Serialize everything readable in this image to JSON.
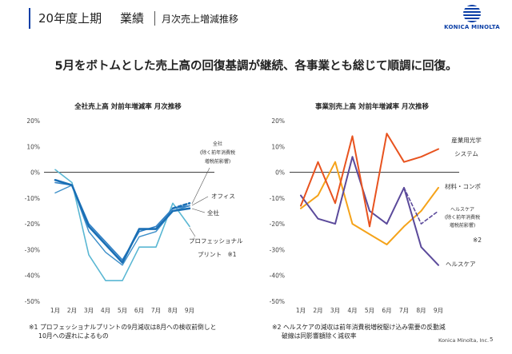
{
  "header": {
    "period": "20年度上期",
    "section": "業績",
    "subtitle": "月次売上増減推移",
    "brand": "KONICA MINOLTA"
  },
  "headline": "5月をボトムとした売上高の回復基調が継続、各事業とも総じて順調に回復。",
  "footer": {
    "company": "Konica Minolta, Inc.",
    "page": "5"
  },
  "chart_data": [
    {
      "type": "line",
      "title": "全社売上高 対前年増減率 月次推移",
      "categories": [
        "1月",
        "2月",
        "3月",
        "4月",
        "5月",
        "6月",
        "7月",
        "8月",
        "9月"
      ],
      "y_ticks": [
        "20%",
        "10%",
        "0%",
        "-10%",
        "-20%",
        "-30%",
        "-40%",
        "-50%"
      ],
      "ylim": [
        -50,
        20
      ],
      "colors": {
        "total": "#1a6fb5",
        "total_adj": "#1a6fb5",
        "office": "#2f7fc4",
        "pro": "#5ab7d3"
      },
      "series": [
        {
          "name": "全社",
          "key": "total",
          "values": [
            -3,
            -5,
            -21,
            -28,
            -35,
            -22,
            -22,
            -15,
            -14
          ]
        },
        {
          "name": "全社(除く前年消費税増税前影響)",
          "key": "total_adj",
          "values": [
            null,
            null,
            null,
            null,
            null,
            null,
            null,
            -14,
            -12
          ]
        },
        {
          "name": "オフィス",
          "key": "office",
          "values": [
            -4,
            -5,
            -20,
            -27,
            -34,
            -23,
            -21,
            -14,
            -13
          ]
        },
        {
          "name": "プロフェッショナルプリント",
          "key": "pro",
          "values": [
            1,
            -4,
            -32,
            -42,
            -42,
            -29,
            -29,
            -12,
            -21
          ]
        },
        {
          "name": "",
          "key": "extra",
          "values": [
            -8,
            -5,
            -23,
            -31,
            -36,
            -25,
            -23,
            -15,
            -13
          ]
        }
      ],
      "labels": {
        "total_adj_1": "全社",
        "total_adj_2": "(除く前年消費税",
        "total_adj_3": "増税前影響)",
        "office": "オフィス",
        "total": "全社",
        "pro_1": "プロフェッショナル",
        "pro_2": "プリント　※1"
      }
    },
    {
      "type": "line",
      "title": "事業別売上高 対前年増減率 月次推移",
      "categories": [
        "1月",
        "2月",
        "3月",
        "4月",
        "5月",
        "6月",
        "7月",
        "8月",
        "9月"
      ],
      "y_ticks": [
        "20%",
        "10%",
        "0%",
        "-10%",
        "-20%",
        "-30%",
        "-40%",
        "-50%"
      ],
      "ylim": [
        -50,
        20
      ],
      "colors": {
        "industrial": "#e8531f",
        "materials": "#f5a31a",
        "healthcare": "#5b4a9b"
      },
      "series": [
        {
          "name": "産業用光学システム",
          "key": "industrial",
          "values": [
            -13,
            4,
            -12,
            14,
            -21,
            15,
            4,
            6,
            9
          ]
        },
        {
          "name": "材料・コンポ",
          "key": "materials",
          "values": [
            -14,
            -9,
            4,
            -20,
            -24,
            -28,
            -21,
            -15,
            -6
          ]
        },
        {
          "name": "ヘルスケア",
          "key": "healthcare",
          "values": [
            -9,
            -18,
            -20,
            6,
            -15,
            -20,
            -6,
            -29,
            -36
          ]
        },
        {
          "name": "ヘルスケア(除く前年消費税増税前影響)",
          "key": "healthcare_adj",
          "values": [
            null,
            null,
            null,
            null,
            null,
            null,
            -6,
            -20,
            -15
          ]
        }
      ],
      "labels": {
        "industrial_1": "産業用光学",
        "industrial_2": "システム",
        "materials": "材料・コンポ",
        "hc_adj_1": "ヘルスケア",
        "hc_adj_2": "(除く前年消費税",
        "hc_adj_3": "増税前影響)",
        "note_mark": "※2",
        "healthcare": "ヘルスケア"
      }
    }
  ],
  "notes": {
    "left_1": "※1 プロフェッショナルプリントの9月減収は8月への検収前倒しと",
    "left_2": "10月への遅れによるもの",
    "right_1": "※2 ヘルスケアの減収は前年消費税増税駆け込み需要の反動減",
    "right_2": "破線は同影響額除く減収率"
  }
}
